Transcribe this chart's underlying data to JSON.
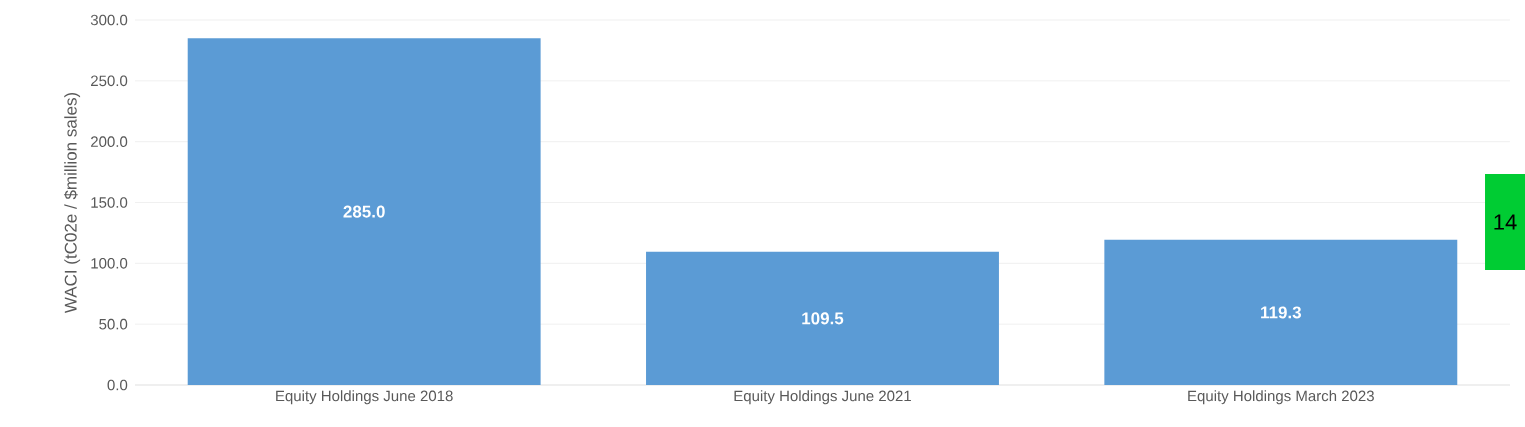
{
  "chart_data": {
    "type": "bar",
    "ylabel": "WACI (tC02e / $million sales)",
    "categories": [
      "Equity Holdings June 2018",
      "Equity Holdings June 2021",
      "Equity Holdings March 2023"
    ],
    "values": [
      285.0,
      109.5,
      119.3
    ],
    "value_labels": [
      "285.0",
      "109.5",
      "119.3"
    ],
    "color": "#5b9bd5",
    "ylim": [
      0,
      300
    ],
    "yticks": [
      {
        "value": 0,
        "label": "0.0"
      },
      {
        "value": 50,
        "label": "50.0"
      },
      {
        "value": 100,
        "label": "100.0"
      },
      {
        "value": 150,
        "label": "150.0"
      },
      {
        "value": 200,
        "label": "200.0"
      },
      {
        "value": 250,
        "label": "250.0"
      },
      {
        "value": 300,
        "label": "300.0"
      }
    ],
    "grid": "y",
    "annotations": [
      "14"
    ]
  }
}
